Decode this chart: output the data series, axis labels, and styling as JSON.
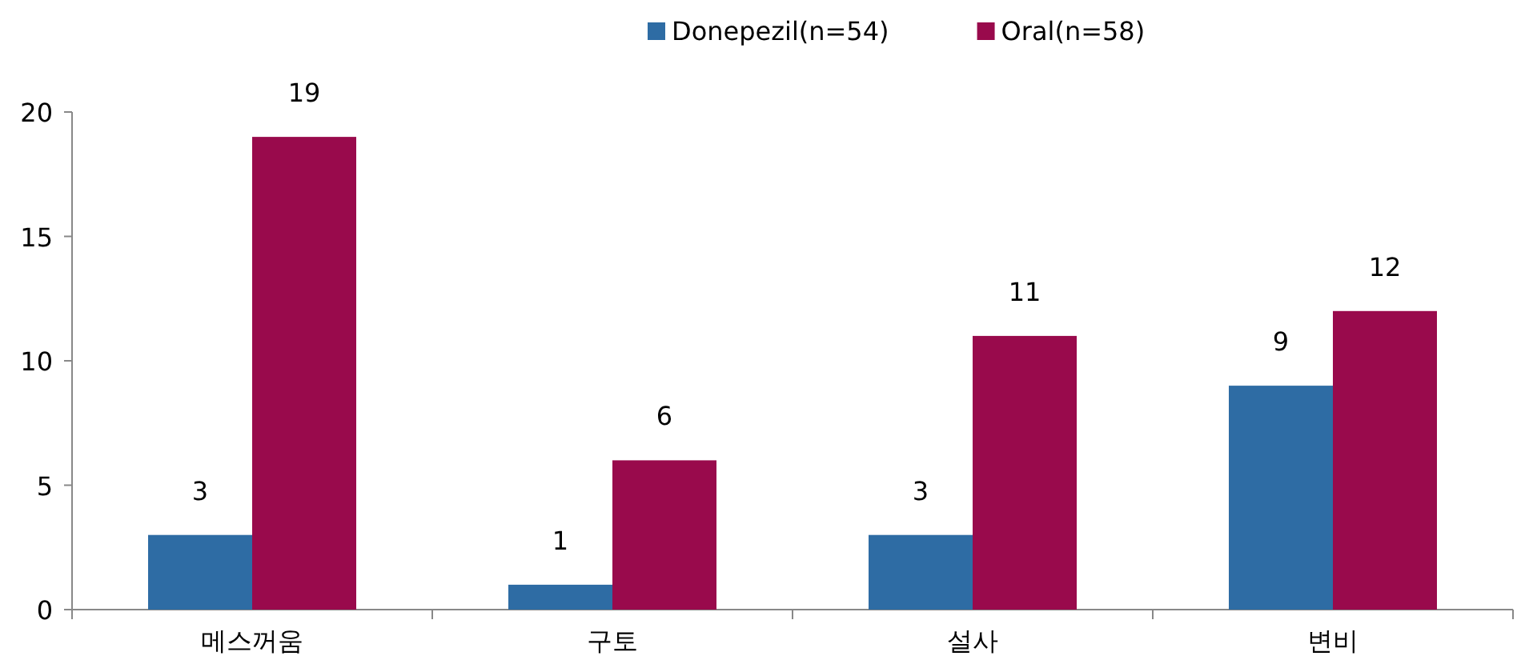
{
  "chart_data": {
    "type": "bar",
    "categories": [
      "메스꺼움",
      "구토",
      "설사",
      "변비"
    ],
    "series": [
      {
        "name": "Donepezil(n=54)",
        "color": "#2e6ca4",
        "values": [
          3,
          1,
          3,
          9
        ]
      },
      {
        "name": "Oral(n=58)",
        "color": "#990a4c",
        "values": [
          19,
          6,
          11,
          12
        ]
      }
    ],
    "ylim": [
      0,
      20
    ],
    "yticks": [
      0,
      5,
      10,
      15,
      20
    ],
    "data_labels": true,
    "legend": "top",
    "grid": false
  }
}
